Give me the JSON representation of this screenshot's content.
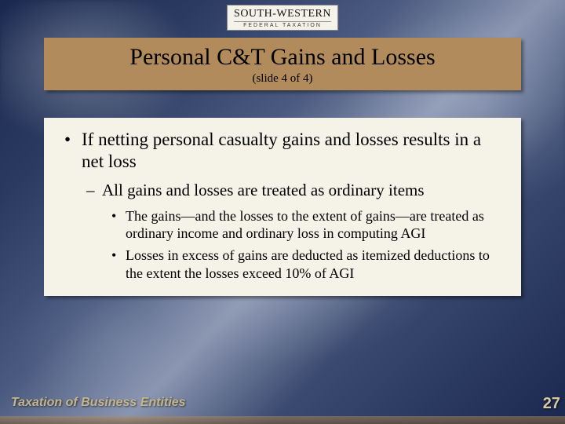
{
  "logo": {
    "main": "SOUTH-WESTERN",
    "sub": "FEDERAL TAXATION"
  },
  "title": {
    "main": "Personal C&T Gains and Losses",
    "sub": "(slide 4 of 4)"
  },
  "bullets": {
    "l1": "If netting personal casualty gains and losses results in a net loss",
    "l2": "All gains and losses are treated as ordinary items",
    "l3a": "The gains—and the losses to the extent of gains—are treated as ordinary income and ordinary loss in computing AGI",
    "l3b": "Losses in excess of gains are deducted as itemized deductions to the extent the losses exceed 10% of AGI"
  },
  "footer": {
    "left": "Taxation of Business Entities",
    "pageNumber": "27"
  },
  "colors": {
    "titleBg": "#b28b5c",
    "contentBg": "#f5f2e8",
    "footerText": "#c5b58a"
  }
}
